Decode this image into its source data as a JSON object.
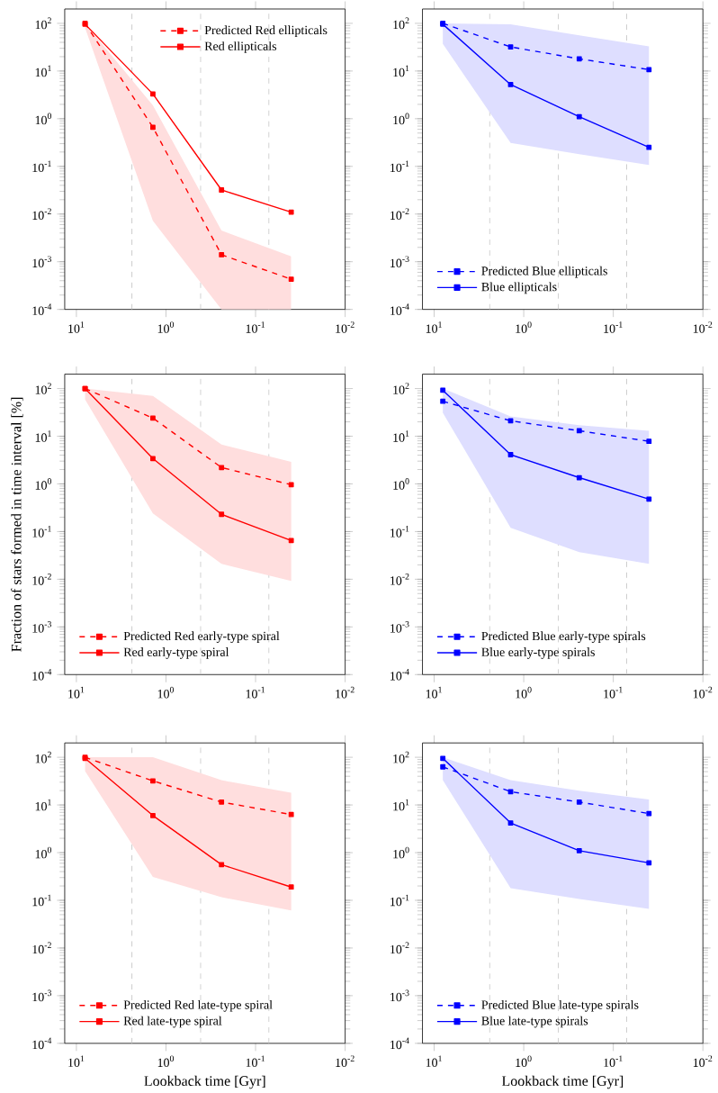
{
  "chart_data": [
    {
      "type": "line",
      "log": "xy",
      "marker": "square",
      "legend": "top right",
      "xlim": [
        13.5,
        0.01
      ],
      "ylim": [
        0.0001,
        200
      ],
      "xticks": [
        {
          "value": 10,
          "label": "10$^{1}$"
        },
        {
          "value": 1,
          "label": "10$^{0}$"
        },
        {
          "value": 0.1,
          "label": "10$^{-1}$"
        },
        {
          "value": 0.01,
          "label": "10$^{-2}$"
        }
      ],
      "yticks": [
        {
          "value": 0.0001,
          "label": "10$^{-4}$"
        },
        {
          "value": 0.001,
          "label": "10$^{-3}$"
        },
        {
          "value": 0.01,
          "label": "10$^{-2}$"
        },
        {
          "value": 0.1,
          "label": "10$^{-1}$"
        },
        {
          "value": 1,
          "label": "10$^{0}$"
        },
        {
          "value": 10,
          "label": "10$^{1}$"
        },
        {
          "value": 100,
          "label": "10$^{2}$"
        }
      ],
      "x": [
        8.0,
        1.4,
        0.24,
        0.04
      ],
      "ref_lines": [
        {
          "axis": "x",
          "value": 2.4,
          "color": "#cccccc",
          "line_style": "dashed"
        },
        {
          "axis": "x",
          "value": 0.41,
          "color": "#cccccc",
          "line_style": "dashed"
        },
        {
          "axis": "x",
          "value": 0.071,
          "color": "#cccccc",
          "line_style": "dashed"
        }
      ],
      "series": [
        {
          "name": "Predicted Red ellipticals",
          "color": "#ff0000",
          "line_style": "dashed",
          "values": [
            100,
            0.66,
            0.0014,
            0.00043
          ]
        },
        {
          "name": "Red ellipticals",
          "color": "#ff0000",
          "line_style": "solid",
          "values": [
            96,
            3.3,
            0.032,
            0.011
          ],
          "lower": [
            80,
            0.0072,
            0.0001,
            0.0001
          ],
          "upper": [
            100,
            1.9,
            0.0045,
            0.0013
          ]
        }
      ]
    },
    {
      "type": "line",
      "log": "xy",
      "marker": "square",
      "legend": "bottom left",
      "xlim": [
        13.5,
        0.01
      ],
      "ylim": [
        0.0001,
        200
      ],
      "xticks": [
        {
          "value": 10,
          "label": "10$^{1}$"
        },
        {
          "value": 1,
          "label": "10$^{0}$"
        },
        {
          "value": 0.1,
          "label": "10$^{-1}$"
        },
        {
          "value": 0.01,
          "label": "10$^{-2}$"
        }
      ],
      "yticks": [
        {
          "value": 0.0001,
          "label": "10$^{-4}$"
        },
        {
          "value": 0.001,
          "label": "10$^{-3}$"
        },
        {
          "value": 0.01,
          "label": "10$^{-2}$"
        },
        {
          "value": 0.1,
          "label": "10$^{-1}$"
        },
        {
          "value": 1,
          "label": "10$^{0}$"
        },
        {
          "value": 10,
          "label": "10$^{1}$"
        },
        {
          "value": 100,
          "label": "10$^{2}$"
        }
      ],
      "x": [
        8.0,
        1.4,
        0.24,
        0.04
      ],
      "ref_lines": [
        {
          "axis": "x",
          "value": 2.4,
          "color": "#cccccc",
          "line_style": "dashed"
        },
        {
          "axis": "x",
          "value": 0.41,
          "color": "#cccccc",
          "line_style": "dashed"
        },
        {
          "axis": "x",
          "value": 0.071,
          "color": "#cccccc",
          "line_style": "dashed"
        }
      ],
      "series": [
        {
          "name": "Predicted Blue ellipticals",
          "color": "#0000ff",
          "line_style": "dashed",
          "values": [
            100,
            32,
            18,
            10.7
          ]
        },
        {
          "name": "Blue ellipticals",
          "color": "#0000ff",
          "line_style": "solid",
          "values": [
            96,
            5.2,
            1.1,
            0.25
          ],
          "lower": [
            37,
            0.31,
            0.18,
            0.107
          ],
          "upper": [
            100,
            95,
            56,
            33
          ]
        }
      ]
    },
    {
      "type": "line",
      "log": "xy",
      "marker": "square",
      "legend": "bottom left",
      "xlim": [
        13.5,
        0.01
      ],
      "ylim": [
        0.0001,
        200
      ],
      "ylabel": "Fraction of stars formed in time interval [%]",
      "xticks": [
        {
          "value": 10,
          "label": "10$^{1}$"
        },
        {
          "value": 1,
          "label": "10$^{0}$"
        },
        {
          "value": 0.1,
          "label": "10$^{-1}$"
        },
        {
          "value": 0.01,
          "label": "10$^{-2}$"
        }
      ],
      "yticks": [
        {
          "value": 0.0001,
          "label": "10$^{-4}$"
        },
        {
          "value": 0.001,
          "label": "10$^{-3}$"
        },
        {
          "value": 0.01,
          "label": "10$^{-2}$"
        },
        {
          "value": 0.1,
          "label": "10$^{-1}$"
        },
        {
          "value": 1,
          "label": "10$^{0}$"
        },
        {
          "value": 10,
          "label": "10$^{1}$"
        },
        {
          "value": 100,
          "label": "10$^{2}$"
        }
      ],
      "x": [
        8.0,
        1.4,
        0.24,
        0.04
      ],
      "ref_lines": [
        {
          "axis": "x",
          "value": 2.4,
          "color": "#cccccc",
          "line_style": "dashed"
        },
        {
          "axis": "x",
          "value": 0.41,
          "color": "#cccccc",
          "line_style": "dashed"
        },
        {
          "axis": "x",
          "value": 0.071,
          "color": "#cccccc",
          "line_style": "dashed"
        }
      ],
      "series": [
        {
          "name": "Predicted Red early-type spiral",
          "color": "#ff0000",
          "line_style": "dashed",
          "values": [
            100,
            24,
            2.2,
            0.96
          ]
        },
        {
          "name": "Red early-type spiral",
          "color": "#ff0000",
          "line_style": "solid",
          "values": [
            100,
            3.4,
            0.23,
            0.065
          ],
          "lower": [
            59,
            0.24,
            0.021,
            0.0092
          ],
          "upper": [
            100,
            70,
            6.7,
            2.9
          ]
        }
      ]
    },
    {
      "type": "line",
      "log": "xy",
      "marker": "square",
      "legend": "bottom left",
      "xlim": [
        13.5,
        0.01
      ],
      "ylim": [
        0.0001,
        200
      ],
      "xticks": [
        {
          "value": 10,
          "label": "10$^{1}$"
        },
        {
          "value": 1,
          "label": "10$^{0}$"
        },
        {
          "value": 0.1,
          "label": "10$^{-1}$"
        },
        {
          "value": 0.01,
          "label": "10$^{-2}$"
        }
      ],
      "yticks": [
        {
          "value": 0.0001,
          "label": "10$^{-4}$"
        },
        {
          "value": 0.001,
          "label": "10$^{-3}$"
        },
        {
          "value": 0.01,
          "label": "10$^{-2}$"
        },
        {
          "value": 0.1,
          "label": "10$^{-1}$"
        },
        {
          "value": 1,
          "label": "10$^{0}$"
        },
        {
          "value": 10,
          "label": "10$^{1}$"
        },
        {
          "value": 100,
          "label": "10$^{2}$"
        }
      ],
      "x": [
        8.0,
        1.4,
        0.24,
        0.04
      ],
      "ref_lines": [
        {
          "axis": "x",
          "value": 2.4,
          "color": "#cccccc",
          "line_style": "dashed"
        },
        {
          "axis": "x",
          "value": 0.41,
          "color": "#cccccc",
          "line_style": "dashed"
        },
        {
          "axis": "x",
          "value": 0.071,
          "color": "#cccccc",
          "line_style": "dashed"
        }
      ],
      "series": [
        {
          "name": "Predicted Blue early-type spirals",
          "color": "#0000ff",
          "line_style": "dashed",
          "values": [
            54,
            21,
            13,
            7.8
          ]
        },
        {
          "name": "Blue early-type spirals",
          "color": "#0000ff",
          "line_style": "solid",
          "values": [
            92,
            4.1,
            1.35,
            0.48
          ],
          "lower": [
            31,
            0.12,
            0.037,
            0.021
          ],
          "upper": [
            100,
            26,
            17,
            13
          ]
        }
      ]
    },
    {
      "type": "line",
      "log": "xy",
      "marker": "square",
      "legend": "bottom left",
      "xlim": [
        13.5,
        0.01
      ],
      "ylim": [
        0.0001,
        200
      ],
      "xlabel": "Lookback time [Gyr]",
      "xticks": [
        {
          "value": 10,
          "label": "10$^{1}$"
        },
        {
          "value": 1,
          "label": "10$^{0}$"
        },
        {
          "value": 0.1,
          "label": "10$^{-1}$"
        },
        {
          "value": 0.01,
          "label": "10$^{-2}$"
        }
      ],
      "yticks": [
        {
          "value": 0.0001,
          "label": "10$^{-4}$"
        },
        {
          "value": 0.001,
          "label": "10$^{-3}$"
        },
        {
          "value": 0.01,
          "label": "10$^{-2}$"
        },
        {
          "value": 0.1,
          "label": "10$^{-1}$"
        },
        {
          "value": 1,
          "label": "10$^{0}$"
        },
        {
          "value": 10,
          "label": "10$^{1}$"
        },
        {
          "value": 100,
          "label": "10$^{2}$"
        }
      ],
      "x": [
        8.0,
        1.4,
        0.24,
        0.04
      ],
      "ref_lines": [
        {
          "axis": "x",
          "value": 2.4,
          "color": "#cccccc",
          "line_style": "dashed"
        },
        {
          "axis": "x",
          "value": 0.41,
          "color": "#cccccc",
          "line_style": "dashed"
        },
        {
          "axis": "x",
          "value": 0.071,
          "color": "#cccccc",
          "line_style": "dashed"
        }
      ],
      "series": [
        {
          "name": "Predicted Red late-type spiral",
          "color": "#ff0000",
          "line_style": "dashed",
          "values": [
            100,
            32,
            11.5,
            6.3
          ]
        },
        {
          "name": "Red late-type spiral",
          "color": "#ff0000",
          "line_style": "solid",
          "values": [
            95,
            6.0,
            0.56,
            0.19
          ],
          "lower": [
            51,
            0.31,
            0.116,
            0.061
          ],
          "upper": [
            100,
            100,
            33,
            18
          ]
        }
      ]
    },
    {
      "type": "line",
      "log": "xy",
      "marker": "square",
      "legend": "bottom left",
      "xlim": [
        13.5,
        0.01
      ],
      "ylim": [
        0.0001,
        200
      ],
      "xlabel": "Lookback time [Gyr]",
      "xticks": [
        {
          "value": 10,
          "label": "10$^{1}$"
        },
        {
          "value": 1,
          "label": "10$^{0}$"
        },
        {
          "value": 0.1,
          "label": "10$^{-1}$"
        },
        {
          "value": 0.01,
          "label": "10$^{-2}$"
        }
      ],
      "yticks": [
        {
          "value": 0.0001,
          "label": "10$^{-4}$"
        },
        {
          "value": 0.001,
          "label": "10$^{-3}$"
        },
        {
          "value": 0.01,
          "label": "10$^{-2}$"
        },
        {
          "value": 0.1,
          "label": "10$^{-1}$"
        },
        {
          "value": 1,
          "label": "10$^{0}$"
        },
        {
          "value": 10,
          "label": "10$^{1}$"
        },
        {
          "value": 100,
          "label": "10$^{2}$"
        }
      ],
      "x": [
        8.0,
        1.4,
        0.24,
        0.04
      ],
      "ref_lines": [
        {
          "axis": "x",
          "value": 2.4,
          "color": "#cccccc",
          "line_style": "dashed"
        },
        {
          "axis": "x",
          "value": 0.41,
          "color": "#cccccc",
          "line_style": "dashed"
        },
        {
          "axis": "x",
          "value": 0.071,
          "color": "#cccccc",
          "line_style": "dashed"
        }
      ],
      "series": [
        {
          "name": "Predicted Blue late-type spirals",
          "color": "#0000ff",
          "line_style": "dashed",
          "values": [
            63,
            19,
            11.5,
            6.6
          ]
        },
        {
          "name": "Blue late-type spirals",
          "color": "#0000ff",
          "line_style": "solid",
          "values": [
            95,
            4.2,
            1.1,
            0.61
          ],
          "lower": [
            33,
            0.18,
            0.107,
            0.066
          ],
          "upper": [
            100,
            33,
            20,
            13
          ]
        }
      ]
    }
  ]
}
